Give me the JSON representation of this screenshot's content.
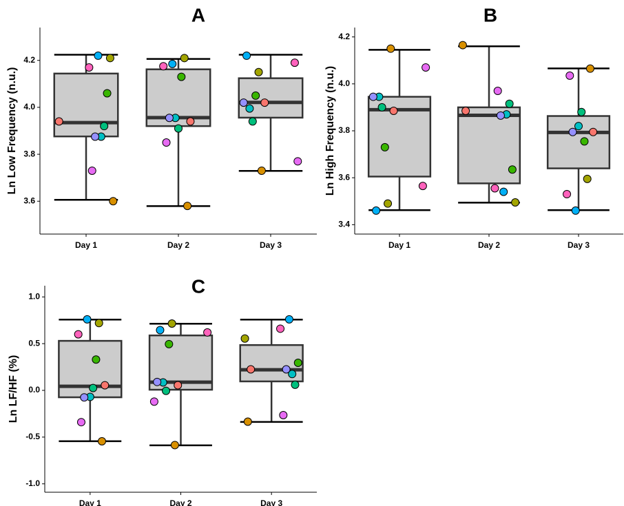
{
  "chart_data": [
    {
      "type": "box",
      "title": "A",
      "y_label": "Ln Low Frequency (n.u.)",
      "categories": [
        "Day 1",
        "Day 2",
        "Day 3"
      ],
      "boxes": [
        {
          "whisker_low": 3.606,
          "q1": 3.876,
          "median": 3.935,
          "q3": 4.144,
          "whisker_high": 4.224
        },
        {
          "whisker_low": 3.579,
          "q1": 3.92,
          "median": 3.956,
          "q3": 4.162,
          "whisker_high": 4.206
        },
        {
          "whisker_low": 3.729,
          "q1": 3.956,
          "median": 4.021,
          "q3": 4.124,
          "whisker_high": 4.224
        }
      ],
      "point_colors": [
        "#F8766D",
        "#D89000",
        "#A3A500",
        "#39B600",
        "#00BF7D",
        "#00BFC4",
        "#00B0F6",
        "#9590FF",
        "#E76BF3",
        "#FF62BC"
      ],
      "points": [
        [
          3.94,
          3.6,
          4.21,
          4.06,
          3.92,
          3.875,
          4.22,
          3.875,
          3.73,
          4.17
        ],
        [
          3.94,
          3.58,
          4.21,
          4.13,
          3.91,
          3.955,
          4.185,
          3.955,
          3.85,
          4.175
        ],
        [
          4.02,
          3.73,
          4.15,
          4.05,
          3.94,
          3.995,
          4.22,
          4.02,
          3.77,
          4.19
        ]
      ],
      "box_color": "#cccccc",
      "ylim": [
        3.46,
        4.34
      ],
      "yticks": [
        3.6,
        3.8,
        {
          "value": 4,
          "label": "4.0"
        },
        4.2
      ]
    },
    {
      "type": "box",
      "title": "B",
      "y_label": "Ln High Frequency (n.u.)",
      "categories": [
        "Day 1",
        "Day 2",
        "Day 3"
      ],
      "boxes": [
        {
          "whisker_low": 3.462,
          "q1": 3.605,
          "median": 3.89,
          "q3": 3.945,
          "whisker_high": 4.145
        },
        {
          "whisker_low": 3.494,
          "q1": 3.576,
          "median": 3.866,
          "q3": 3.9,
          "whisker_high": 4.16
        },
        {
          "whisker_low": 3.462,
          "q1": 3.64,
          "median": 3.793,
          "q3": 3.863,
          "whisker_high": 4.066
        }
      ],
      "point_colors": [
        "#F8766D",
        "#D89000",
        "#A3A500",
        "#39B600",
        "#00BF7D",
        "#00BFC4",
        "#00B0F6",
        "#9590FF",
        "#E76BF3",
        "#FF62BC"
      ],
      "points": [
        [
          3.885,
          4.15,
          3.49,
          3.73,
          3.9,
          3.945,
          3.46,
          3.945,
          4.07,
          3.565
        ],
        [
          3.885,
          4.165,
          3.495,
          3.635,
          3.915,
          3.87,
          3.54,
          3.865,
          3.97,
          3.555
        ],
        [
          3.795,
          4.065,
          3.595,
          3.755,
          3.88,
          3.82,
          3.46,
          3.795,
          4.035,
          3.53
        ]
      ],
      "box_color": "#cccccc",
      "ylim": [
        3.36,
        4.24
      ],
      "yticks": [
        3.4,
        3.6,
        3.8,
        {
          "value": 4,
          "label": "4.0"
        },
        4.2
      ]
    },
    {
      "type": "box",
      "title": "C",
      "y_label": "Ln LF/HF (%)",
      "categories": [
        "Day 1",
        "Day 2",
        "Day 3"
      ],
      "boxes": [
        {
          "whisker_low": -0.544,
          "q1": -0.074,
          "median": 0.044,
          "q3": 0.53,
          "whisker_high": 0.757
        },
        {
          "whisker_low": -0.588,
          "q1": 0.007,
          "median": 0.088,
          "q3": 0.588,
          "whisker_high": 0.713
        },
        {
          "whisker_low": -0.338,
          "q1": 0.096,
          "median": 0.22,
          "q3": 0.485,
          "whisker_high": 0.757
        }
      ],
      "point_colors": [
        "#F8766D",
        "#D89000",
        "#A3A500",
        "#39B600",
        "#00BF7D",
        "#00BFC4",
        "#00B0F6",
        "#9590FF",
        "#E76BF3",
        "#FF62BC"
      ],
      "points": [
        [
          0.055,
          -0.545,
          0.72,
          0.33,
          0.025,
          -0.07,
          0.76,
          -0.075,
          -0.34,
          0.6
        ],
        [
          0.055,
          -0.585,
          0.715,
          0.495,
          -0.005,
          0.085,
          0.645,
          0.09,
          -0.12,
          0.62
        ],
        [
          0.225,
          -0.335,
          0.555,
          0.295,
          0.06,
          0.175,
          0.76,
          0.225,
          -0.265,
          0.66
        ]
      ],
      "box_color": "#cccccc",
      "ylim": [
        -1.09,
        1.12
      ],
      "yticks": [
        {
          "value": -1,
          "label": "-1.0"
        },
        -0.5,
        {
          "value": 0,
          "label": "0.0"
        },
        0.5,
        {
          "value": 1,
          "label": "1.0"
        }
      ]
    }
  ]
}
